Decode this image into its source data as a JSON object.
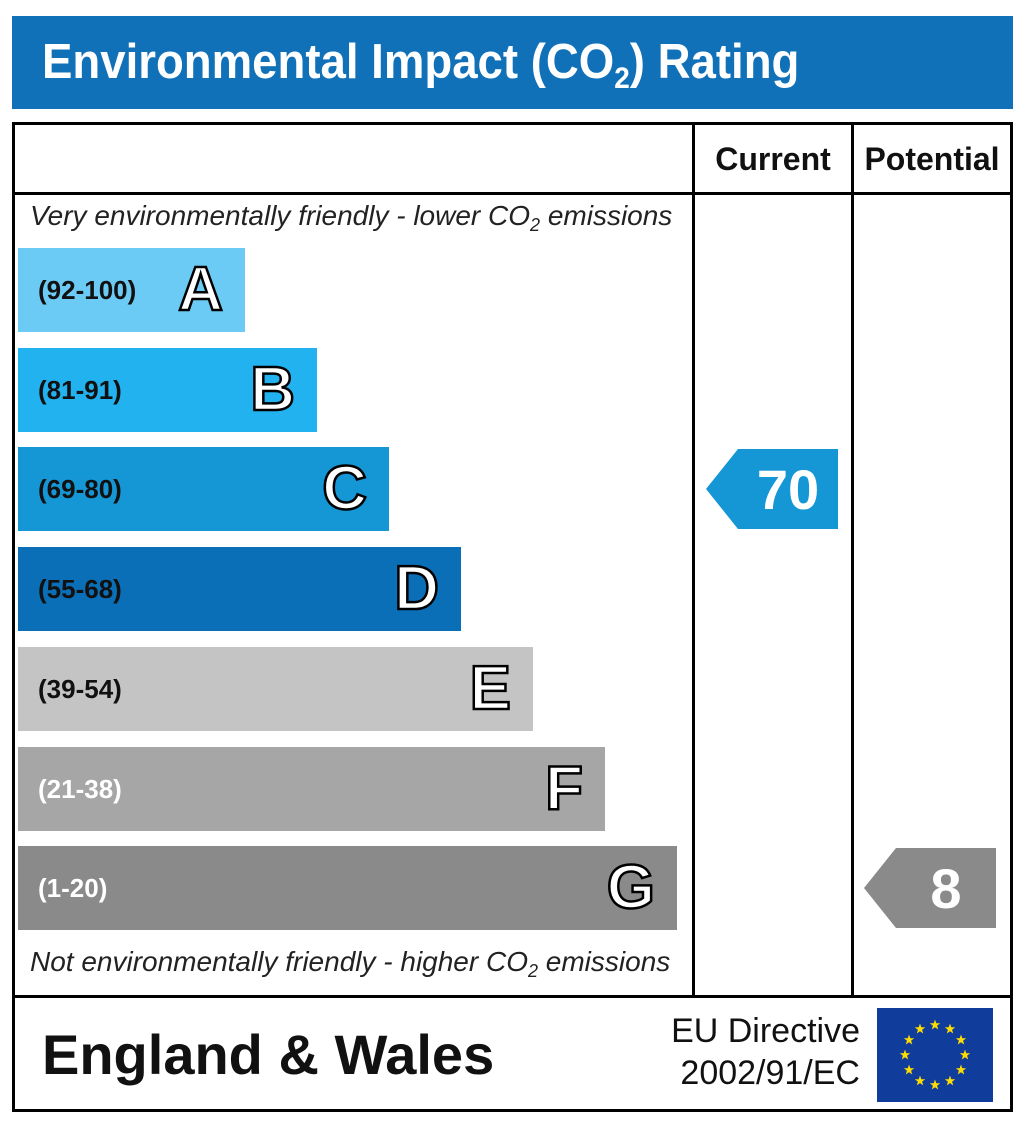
{
  "title": "Environmental Impact (CO2) Rating",
  "title_parts": {
    "before": "Environmental Impact (CO",
    "sub": "2",
    "after": ") Rating"
  },
  "columns": {
    "current": "Current",
    "potential": "Potential"
  },
  "top_caption": {
    "before": "Very environmentally friendly - lower CO",
    "sub": "2",
    "after": " emissions"
  },
  "bottom_caption": {
    "before": "Not environmentally friendly - higher CO",
    "sub": "2",
    "after": " emissions"
  },
  "footer": {
    "region": "England & Wales",
    "directive_line1": "EU Directive",
    "directive_line2": "2002/91/EC",
    "flag_icon": "eu-flag-icon"
  },
  "chart_data": {
    "type": "bar",
    "title": "Environmental Impact (CO2) Rating",
    "bands": [
      {
        "letter": "A",
        "range": "(92-100)",
        "min": 92,
        "max": 100,
        "color": "#6ccbf4",
        "text_color": "#111111"
      },
      {
        "letter": "B",
        "range": "(81-91)",
        "min": 81,
        "max": 91,
        "color": "#22b2ef",
        "text_color": "#111111"
      },
      {
        "letter": "C",
        "range": "(69-80)",
        "min": 69,
        "max": 80,
        "color": "#1596d5",
        "text_color": "#111111"
      },
      {
        "letter": "D",
        "range": "(55-68)",
        "min": 55,
        "max": 68,
        "color": "#0b6fb8",
        "text_color": "#111111"
      },
      {
        "letter": "E",
        "range": "(39-54)",
        "min": 39,
        "max": 54,
        "color": "#c4c4c4",
        "text_color": "#111111"
      },
      {
        "letter": "F",
        "range": "(21-38)",
        "min": 21,
        "max": 38,
        "color": "#a6a6a6",
        "text_color": "#ffffff"
      },
      {
        "letter": "G",
        "range": "(1-20)",
        "min": 1,
        "max": 20,
        "color": "#8a8a8a",
        "text_color": "#ffffff"
      }
    ],
    "current": {
      "value": 70,
      "band": "C",
      "color": "#1596d5"
    },
    "potential": {
      "value": 8,
      "band": "G",
      "color": "#8a8a8a"
    }
  }
}
